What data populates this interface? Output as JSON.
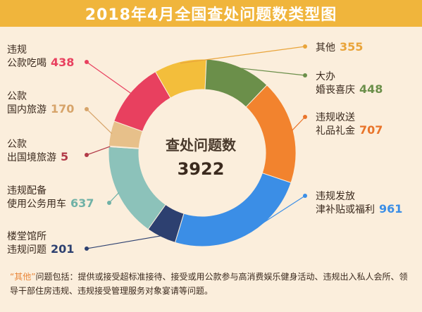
{
  "title": "2018年4月全国查处问题数类型图",
  "center": {
    "label": "查处问题数",
    "total": "3922"
  },
  "chart_data": {
    "type": "pie",
    "title": "2018年4月全国查处问题数类型图",
    "total": 3922,
    "slices": [
      {
        "name": "其他",
        "lines": [
          "其他"
        ],
        "value": 355,
        "color": "#f3be3b",
        "value_color": "#e9a43a"
      },
      {
        "name": "大办婚丧喜庆",
        "lines": [
          "大办",
          "婚丧喜庆"
        ],
        "value": 448,
        "color": "#6b8f4a",
        "value_color": "#6b8f4a"
      },
      {
        "name": "违规收送礼品礼金",
        "lines": [
          "违规收送",
          "礼品礼金"
        ],
        "value": 707,
        "color": "#f2832e",
        "value_color": "#e9742a"
      },
      {
        "name": "违规发放津补贴或福利",
        "lines": [
          "违规发放",
          "津补贴或福利"
        ],
        "value": 961,
        "color": "#3b8ee6",
        "value_color": "#3b8ee6"
      },
      {
        "name": "楼堂馆所违规问题",
        "lines": [
          "楼堂馆所",
          "违规问题"
        ],
        "value": 201,
        "color": "#2d4070",
        "value_color": "#2d4070"
      },
      {
        "name": "违规配备使用公务用车",
        "lines": [
          "违规配备",
          "使用公务用车"
        ],
        "value": 637,
        "color": "#8cc2ba",
        "value_color": "#6fb1a6"
      },
      {
        "name": "公款出国境旅游",
        "lines": [
          "公款",
          "出国境旅游"
        ],
        "value": 5,
        "color": "#b23a48",
        "value_color": "#b23a48"
      },
      {
        "name": "公款国内旅游",
        "lines": [
          "公款",
          "国内旅游"
        ],
        "value": 170,
        "color": "#e7c08a",
        "value_color": "#d7a46a"
      },
      {
        "name": "违规公款吃喝",
        "lines": [
          "违规",
          "公款吃喝"
        ],
        "value": 438,
        "color": "#e8405f",
        "value_color": "#e8405f"
      }
    ]
  },
  "footnote": {
    "highlight": "“其他”",
    "text": "问题包括：提供或接受超标准接待、接受或用公款参与高消费娱乐健身活动、违规出入私人会所、领导干部住房违规、违规接受管理服务对象宴请等问题。"
  }
}
